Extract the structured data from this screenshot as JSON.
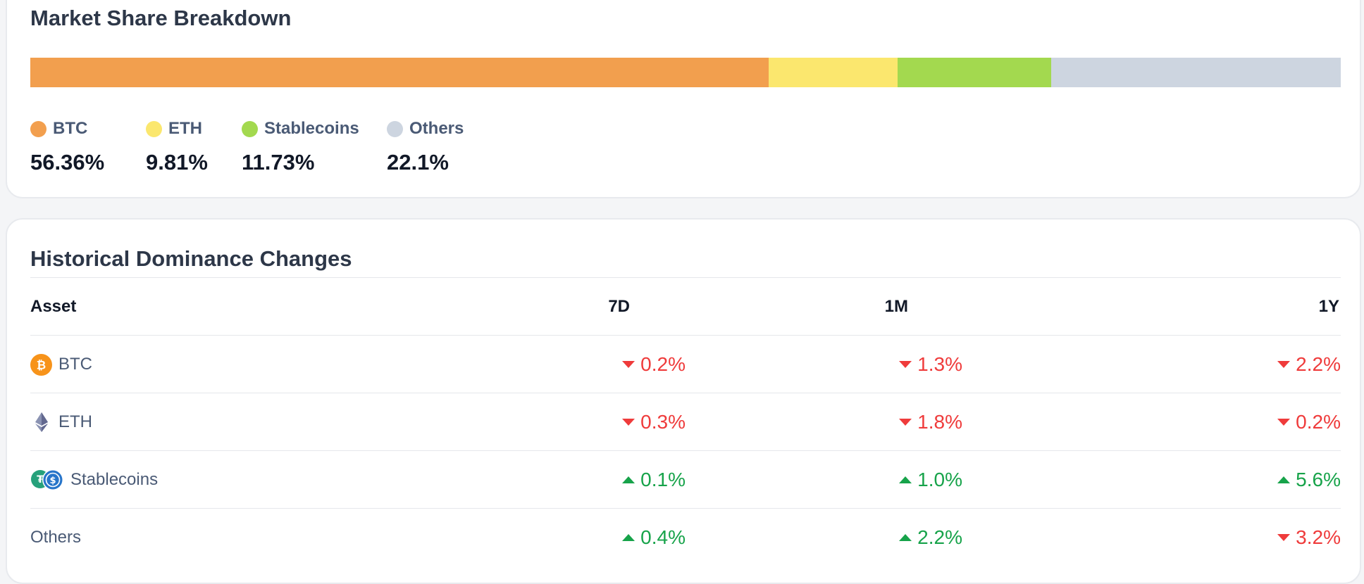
{
  "breakdown": {
    "title": "Market Share Breakdown",
    "segments": [
      {
        "key": "btc",
        "label": "BTC",
        "value": "56.36%",
        "share": 56.36,
        "color": "#f29f4e"
      },
      {
        "key": "eth",
        "label": "ETH",
        "value": "9.81%",
        "share": 9.81,
        "color": "#fbe76e"
      },
      {
        "key": "stable",
        "label": "Stablecoins",
        "value": "11.73%",
        "share": 11.73,
        "color": "#a3d94f"
      },
      {
        "key": "others",
        "label": "Others",
        "value": "22.1%",
        "share": 22.1,
        "color": "#cdd5e0"
      }
    ]
  },
  "history": {
    "title": "Historical Dominance Changes",
    "columns": {
      "asset": "Asset",
      "d7": "7D",
      "m1": "1M",
      "y1": "1Y"
    },
    "rows": [
      {
        "asset": "BTC",
        "icon": "bitcoin-icon",
        "d7": {
          "value": "0.2%",
          "dir": "down"
        },
        "m1": {
          "value": "1.3%",
          "dir": "down"
        },
        "y1": {
          "value": "2.2%",
          "dir": "down"
        }
      },
      {
        "asset": "ETH",
        "icon": "ethereum-icon",
        "d7": {
          "value": "0.3%",
          "dir": "down"
        },
        "m1": {
          "value": "1.8%",
          "dir": "down"
        },
        "y1": {
          "value": "0.2%",
          "dir": "down"
        }
      },
      {
        "asset": "Stablecoins",
        "icon": "stablecoins-icon",
        "d7": {
          "value": "0.1%",
          "dir": "up"
        },
        "m1": {
          "value": "1.0%",
          "dir": "up"
        },
        "y1": {
          "value": "5.6%",
          "dir": "up"
        }
      },
      {
        "asset": "Others",
        "icon": "",
        "d7": {
          "value": "0.4%",
          "dir": "up"
        },
        "m1": {
          "value": "2.2%",
          "dir": "up"
        },
        "y1": {
          "value": "3.2%",
          "dir": "down"
        }
      }
    ],
    "colors": {
      "down": "#ef3b3b",
      "up": "#17a34a"
    }
  }
}
